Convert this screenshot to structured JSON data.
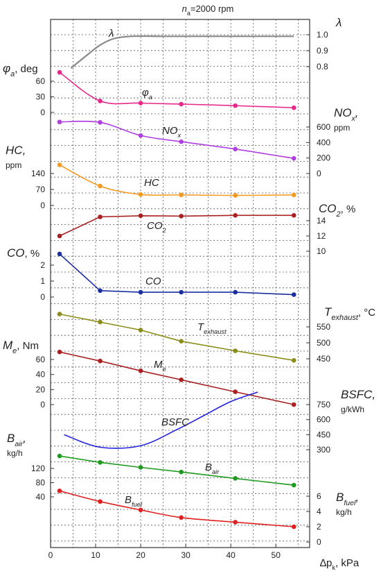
{
  "chart_data": {
    "type": "line",
    "title": "n_a=2000 rpm",
    "title_parts": {
      "pre": "n",
      "sub": "a",
      "post": "=2000 rpm"
    },
    "x_axis": {
      "label_pre": "∆p",
      "label_sub": "k",
      "label_post": ", kPa",
      "range": [
        0,
        57.5
      ],
      "ticks": [
        "0",
        "10",
        "20",
        "30",
        "40",
        "50"
      ]
    },
    "grid": true,
    "series": [
      {
        "key": "lambda",
        "name": "λ",
        "side": "right",
        "axis_label": "λ",
        "ticks": [
          [
            "1.0",
            1.0
          ],
          [
            "0.9",
            0.9
          ],
          [
            "0.8",
            0.8
          ]
        ],
        "color": "#888888",
        "smooth": true,
        "markers": false,
        "line_label": {
          "text": "λ"
        },
        "x": [
          4.5,
          8,
          11,
          14,
          18,
          25,
          35,
          45,
          54
        ],
        "y": [
          0.79,
          0.87,
          0.935,
          0.975,
          0.99,
          0.99,
          0.99,
          0.99,
          0.99
        ]
      },
      {
        "key": "phi",
        "name": "φa",
        "side": "left",
        "axis_label": "φa, deg",
        "ticks": [
          [
            "60",
            60
          ],
          [
            "30",
            30
          ],
          [
            "0",
            0
          ]
        ],
        "color": "#e8288a",
        "smooth": true,
        "markers": true,
        "line_label": {
          "text": "φa"
        },
        "x": [
          2,
          11,
          20,
          29,
          41,
          54
        ],
        "y": [
          77,
          22,
          18,
          16,
          13,
          9
        ]
      },
      {
        "key": "nox",
        "name": "NOx",
        "side": "right",
        "axis_label": "NOx, ppm",
        "ticks": [
          [
            "600",
            600
          ],
          [
            "400",
            400
          ],
          [
            "200",
            200
          ],
          [
            "0",
            0
          ]
        ],
        "color": "#b040e0",
        "smooth": true,
        "markers": true,
        "line_label": {
          "text": "NOx"
        },
        "x": [
          2,
          11,
          20,
          29,
          41,
          54
        ],
        "y": [
          665,
          660,
          490,
          410,
          315,
          195
        ]
      },
      {
        "key": "hc",
        "name": "HC",
        "side": "left",
        "axis_label": "HC, ppm",
        "ticks": [
          [
            "140",
            140
          ],
          [
            "70",
            70
          ],
          [
            "0",
            0
          ]
        ],
        "color": "#f59a20",
        "smooth": true,
        "markers": true,
        "line_label": {
          "text": "HC"
        },
        "x": [
          2,
          11,
          20,
          29,
          41,
          54
        ],
        "y": [
          178,
          85,
          48,
          46,
          44,
          46
        ]
      },
      {
        "key": "co2",
        "name": "CO2",
        "side": "right",
        "axis_label": "CO2, %",
        "ticks": [
          [
            "14",
            14
          ],
          [
            "12",
            12
          ],
          [
            "10",
            10
          ]
        ],
        "color": "#a82020",
        "smooth": false,
        "markers": true,
        "line_label": {
          "text": "CO2"
        },
        "x": [
          2,
          11,
          20,
          29,
          41,
          54
        ],
        "y": [
          12,
          14.5,
          14.65,
          14.6,
          14.7,
          14.7
        ]
      },
      {
        "key": "co",
        "name": "CO",
        "side": "left",
        "axis_label": "CO, %",
        "ticks": [
          [
            "2",
            2
          ],
          [
            "1",
            1
          ],
          [
            "0",
            0
          ]
        ],
        "color": "#1a2fa0",
        "smooth": false,
        "markers": true,
        "line_label": {
          "text": "CO"
        },
        "x": [
          2,
          11,
          20,
          29,
          41,
          54
        ],
        "y": [
          2.7,
          0.4,
          0.3,
          0.3,
          0.3,
          0.15
        ]
      },
      {
        "key": "texh",
        "name": "Texhaust",
        "side": "right",
        "axis_label": "Texhaust,°C",
        "ticks": [
          [
            "550",
            550
          ],
          [
            "500",
            500
          ],
          [
            "450",
            450
          ]
        ],
        "color": "#8c8c1a",
        "smooth": false,
        "markers": true,
        "line_label": {
          "text": "Texhaust"
        },
        "x": [
          2,
          11,
          20,
          29,
          41,
          54
        ],
        "y": [
          590,
          565,
          540,
          505,
          475,
          445
        ]
      },
      {
        "key": "me",
        "name": "Me",
        "side": "left",
        "axis_label": "Me, Nm",
        "ticks": [
          [
            "60",
            60
          ],
          [
            "40",
            40
          ],
          [
            "20",
            20
          ],
          [
            "0",
            0
          ]
        ],
        "color": "#a82020",
        "smooth": false,
        "markers": true,
        "line_label": {
          "text": "Me"
        },
        "x": [
          2,
          11,
          20,
          29,
          41,
          54
        ],
        "y": [
          70,
          58,
          45,
          33,
          17,
          0
        ]
      },
      {
        "key": "bsfc",
        "name": "BSFC",
        "side": "right",
        "axis_label": "BSFC, g/kWh",
        "ticks": [
          [
            "750",
            750
          ],
          [
            "600",
            600
          ],
          [
            "450",
            450
          ],
          [
            "300",
            300
          ]
        ],
        "color": "#2020e0",
        "smooth": true,
        "markers": false,
        "line_label": {
          "text": "BSFC"
        },
        "x": [
          3,
          11,
          20,
          28,
          34,
          40,
          46
        ],
        "y": [
          450,
          325,
          340,
          500,
          640,
          780,
          875
        ]
      },
      {
        "key": "bair",
        "name": "Bair",
        "side": "left",
        "axis_label": "Bair, kg/h",
        "ticks": [
          [
            "120",
            120
          ],
          [
            "80",
            80
          ],
          [
            "40",
            40
          ]
        ],
        "color": "#1e9a1e",
        "smooth": false,
        "markers": true,
        "line_label": {
          "text": "Bair"
        },
        "x": [
          2,
          11,
          20,
          29,
          41,
          54
        ],
        "y": [
          155,
          137,
          123,
          110,
          92,
          73
        ]
      },
      {
        "key": "bfuel",
        "name": "Bfuel",
        "side": "right",
        "axis_label": "Bfuel, kg/h",
        "ticks": [
          [
            "6",
            6
          ],
          [
            "4",
            4
          ],
          [
            "2",
            2
          ],
          [
            "0",
            0
          ]
        ],
        "color": "#e02020",
        "smooth": true,
        "markers": true,
        "line_label": {
          "text": "Bfuel"
        },
        "x": [
          2,
          11,
          20,
          29,
          41,
          54
        ],
        "y": [
          6.7,
          5.3,
          4.2,
          3.2,
          2.6,
          2.0
        ]
      }
    ]
  }
}
